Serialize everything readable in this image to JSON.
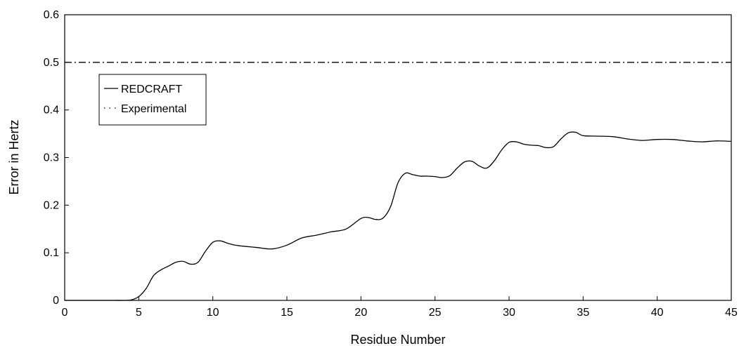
{
  "chart_data": {
    "type": "line",
    "title": "",
    "xlabel": "Residue Number",
    "ylabel": "Error in Hertz",
    "xlim": [
      0,
      45
    ],
    "ylim": [
      0,
      0.6
    ],
    "xticks": [
      "0",
      "5",
      "10",
      "15",
      "20",
      "25",
      "30",
      "35",
      "40",
      "45"
    ],
    "yticks": [
      "0",
      "0.1",
      "0.2",
      "0.3",
      "0.4",
      "0.5",
      "0.6"
    ],
    "grid": false,
    "legend_position": "upper-left",
    "series": [
      {
        "name": "REDCRAFT",
        "style": "solid",
        "color": "#000000",
        "x": [
          0,
          1,
          2,
          3,
          4,
          4.5,
          5,
          5.5,
          6,
          6.5,
          7,
          7.5,
          8,
          8.5,
          9,
          9.5,
          10,
          10.5,
          11,
          11.5,
          12,
          13,
          14,
          15,
          16,
          17,
          18,
          19,
          20,
          20.5,
          21,
          21.5,
          22,
          22.5,
          23,
          23.5,
          24,
          24.5,
          25,
          25.5,
          26,
          26.5,
          27,
          27.5,
          28,
          28.5,
          29,
          29.5,
          30,
          30.5,
          31,
          31.5,
          32,
          32.5,
          33,
          33.5,
          34,
          34.5,
          35,
          36,
          37,
          38,
          39,
          40,
          41,
          42,
          43,
          44,
          45
        ],
        "y": [
          0,
          0,
          0,
          0,
          0,
          0.001,
          0.008,
          0.025,
          0.052,
          0.064,
          0.072,
          0.08,
          0.082,
          0.076,
          0.08,
          0.103,
          0.122,
          0.125,
          0.12,
          0.116,
          0.114,
          0.111,
          0.108,
          0.116,
          0.131,
          0.137,
          0.144,
          0.15,
          0.172,
          0.174,
          0.17,
          0.173,
          0.197,
          0.247,
          0.267,
          0.264,
          0.261,
          0.261,
          0.26,
          0.258,
          0.262,
          0.278,
          0.291,
          0.292,
          0.282,
          0.278,
          0.293,
          0.316,
          0.332,
          0.333,
          0.328,
          0.326,
          0.325,
          0.321,
          0.323,
          0.339,
          0.352,
          0.353,
          0.346,
          0.345,
          0.344,
          0.339,
          0.336,
          0.338,
          0.338,
          0.335,
          0.333,
          0.335,
          0.334
        ]
      },
      {
        "name": "Experimental",
        "style": "dash-dot",
        "color": "#000000",
        "x": [
          0,
          45
        ],
        "y": [
          0.5,
          0.5
        ]
      }
    ]
  }
}
